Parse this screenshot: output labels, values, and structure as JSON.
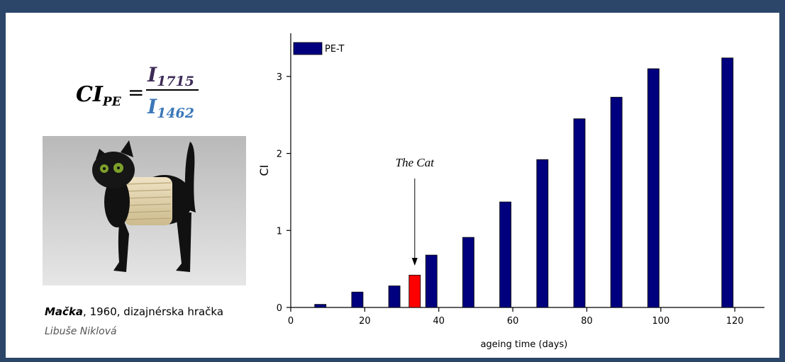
{
  "formula": {
    "lhs": "CI",
    "lhs_sub": "PE",
    "equals": "=",
    "numerator": "I",
    "numerator_sub": "1715",
    "denominator": "I",
    "denominator_sub": "1462"
  },
  "caption": {
    "title": "Mačka",
    "rest": ", 1960, dizajnérska hračka",
    "author": "Libuše Niklová"
  },
  "chart_data": {
    "type": "bar",
    "xlabel": "ageing time (days)",
    "ylabel": "CI",
    "xlim": [
      0,
      128
    ],
    "ylim": [
      0,
      3.56
    ],
    "xticks": [
      0,
      20,
      40,
      60,
      80,
      100,
      120
    ],
    "yticks": [
      0,
      1,
      2,
      3
    ],
    "legend": "top-left",
    "series": [
      {
        "name": "PE-T",
        "color": "#00007f",
        "x": [
          8,
          18,
          28,
          33.5,
          38,
          48,
          58,
          68,
          78,
          88,
          98,
          118
        ],
        "values": [
          0.04,
          0.2,
          0.28,
          0.42,
          0.68,
          0.91,
          1.37,
          1.92,
          2.45,
          2.73,
          3.1,
          3.24
        ],
        "colors": [
          "#00007f",
          "#00007f",
          "#00007f",
          "#ff0000",
          "#00007f",
          "#00007f",
          "#00007f",
          "#00007f",
          "#00007f",
          "#00007f",
          "#00007f",
          "#00007f"
        ]
      }
    ],
    "annotations": [
      {
        "text": "The Cat",
        "x": 33.5
      }
    ]
  }
}
